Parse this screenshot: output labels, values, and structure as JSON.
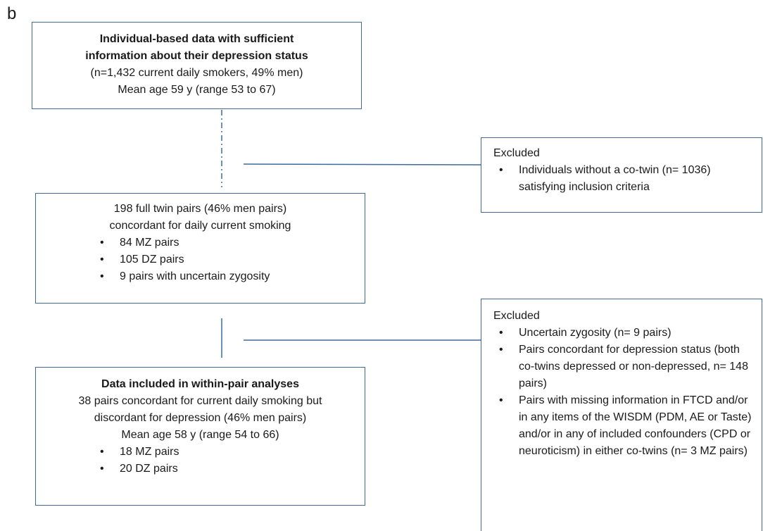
{
  "label": "b",
  "boxes": [
    {
      "lines": [
        "Individual-based data with sufficient",
        "information about their depression status",
        "(n=1,432 current daily smokers, 49% men)",
        "Mean age 59 y (range 53 to 67)"
      ]
    },
    {
      "lines": [
        "198 full twin pairs (46% men pairs)",
        "concordant for daily current smoking"
      ],
      "bullets": [
        "84 MZ pairs",
        "105 DZ pairs",
        "9 pairs with uncertain zygosity"
      ]
    },
    {
      "lines": [
        "Data included in within-pair analyses",
        "38 pairs concordant for current daily smoking but",
        "discordant for depression (46% men pairs)",
        "Mean age 58 y (range 54 to 66)"
      ],
      "bullets": [
        "18 MZ pairs",
        "20 DZ pairs"
      ]
    }
  ],
  "exclusions": [
    {
      "heading": "Excluded",
      "bullets": [
        "Individuals without a co-twin (n= 1036) satisfying inclusion criteria"
      ]
    },
    {
      "heading": "Excluded",
      "bullets": [
        "Uncertain zygosity (n= 9 pairs)",
        "Pairs concordant for depression status (both co-twins depressed or non-depressed, n= 148 pairs)",
        "Pairs with missing information in FTCD and/or in any items of the WISDM (PDM, AE or Taste) and/or in any of included confounders (CPD or neuroticism) in either co-twins (n= 3 MZ pairs)"
      ]
    }
  ]
}
